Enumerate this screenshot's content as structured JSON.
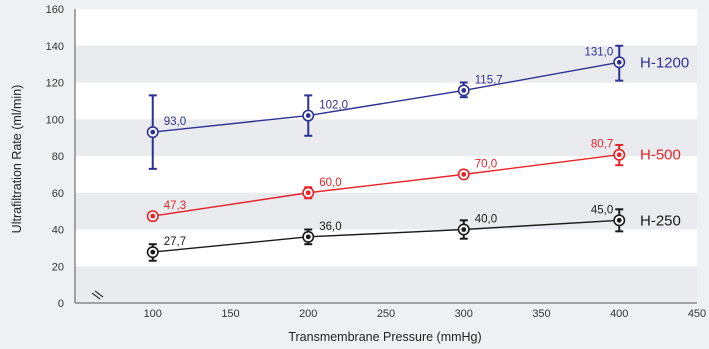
{
  "chart_data": {
    "type": "line",
    "xlabel": "Transmembrane Pressure (mmHg)",
    "ylabel": "Ultrafiltration Rate (ml/min)",
    "xlim": [
      50,
      450
    ],
    "ylim": [
      0,
      160
    ],
    "x_ticks": [
      "100",
      "150",
      "200",
      "250",
      "300",
      "350",
      "400",
      "450"
    ],
    "y_ticks": [
      "0",
      "20",
      "40",
      "60",
      "80",
      "100",
      "120",
      "140",
      "160"
    ],
    "axis_break": true,
    "grid": "alternating horizontal bands",
    "x": [
      100,
      200,
      300,
      400
    ],
    "series": [
      {
        "name": "H-1200",
        "color": "#2e3192",
        "values": [
          93.0,
          102.0,
          115.7,
          131.0
        ],
        "labels": [
          "93,0",
          "102,0",
          "115,7",
          "131,0"
        ],
        "err_low": [
          73,
          91,
          112,
          121
        ],
        "err_high": [
          113,
          113,
          120,
          140
        ]
      },
      {
        "name": "H-500",
        "color": "#e52329",
        "values": [
          47.3,
          60.0,
          70.0,
          80.7
        ],
        "labels": [
          "47,3",
          "60,0",
          "70,0",
          "80,7"
        ],
        "err_low": [
          45,
          57,
          68,
          75
        ],
        "err_high": [
          49,
          63,
          72,
          86
        ]
      },
      {
        "name": "H-250",
        "color": "#1a1a1a",
        "values": [
          27.7,
          36.0,
          40.0,
          45.0
        ],
        "labels": [
          "27,7",
          "36,0",
          "40,0",
          "45,0"
        ],
        "err_low": [
          23,
          32,
          35,
          39
        ],
        "err_high": [
          32,
          40,
          45,
          51
        ]
      }
    ]
  }
}
